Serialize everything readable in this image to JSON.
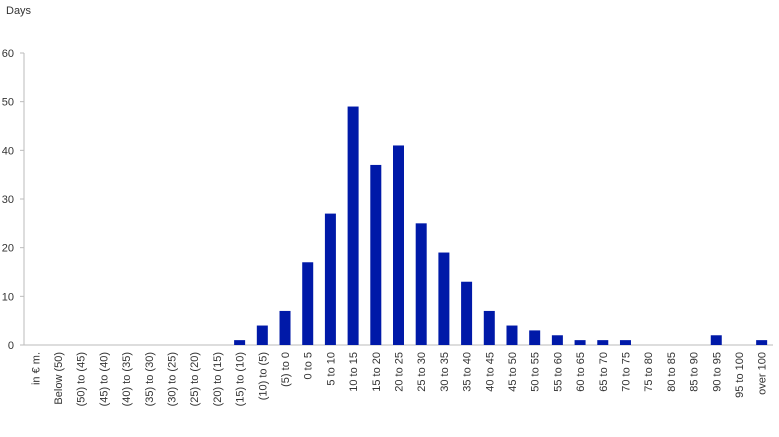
{
  "chart_data": {
    "type": "bar",
    "y_label": "Days",
    "categories": [
      "in € m.",
      "Below (50)",
      "(50) to (45)",
      "(45) to (40)",
      "(40) to (35)",
      "(35) to (30)",
      "(30) to (25)",
      "(25) to (20)",
      "(20) to (15)",
      "(15) to (10)",
      "(10) to (5)",
      "(5) to 0",
      "0 to 5",
      "5 to 10",
      "10 to 15",
      "15 to 20",
      "20 to 25",
      "25 to 30",
      "30 to 35",
      "35 to 40",
      "40 to 45",
      "45 to 50",
      "50 to 55",
      "55 to 60",
      "60 to 65",
      "65 to 70",
      "70 to 75",
      "75 to 80",
      "80 to 85",
      "85 to 90",
      "90 to 95",
      "95 to 100",
      "over 100"
    ],
    "values": [
      null,
      0,
      0,
      0,
      0,
      0,
      0,
      0,
      0,
      1,
      4,
      7,
      17,
      27,
      49,
      37,
      41,
      25,
      19,
      13,
      7,
      4,
      3,
      2,
      1,
      1,
      1,
      0,
      0,
      0,
      2,
      0,
      1
    ],
    "color": "#0019a8",
    "ylim": [
      0,
      60
    ],
    "yticks": [
      0,
      10,
      20,
      30,
      40,
      50,
      60
    ],
    "grid": false
  }
}
